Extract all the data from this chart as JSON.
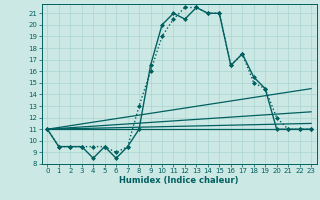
{
  "xlabel": "Humidex (Indice chaleur)",
  "bg_color": "#cce8e4",
  "line_color": "#006060",
  "grid_color": "#aad4d0",
  "xlim": [
    -0.5,
    23.5
  ],
  "ylim": [
    8,
    21.8
  ],
  "yticks": [
    8,
    9,
    10,
    11,
    12,
    13,
    14,
    15,
    16,
    17,
    18,
    19,
    20,
    21
  ],
  "xticks": [
    0,
    1,
    2,
    3,
    4,
    5,
    6,
    7,
    8,
    9,
    10,
    11,
    12,
    13,
    14,
    15,
    16,
    17,
    18,
    19,
    20,
    21,
    22,
    23
  ],
  "series": [
    {
      "x": [
        0,
        1,
        2,
        3,
        4,
        5,
        6,
        7,
        8,
        9,
        10,
        11,
        12,
        13,
        14,
        15,
        16,
        17,
        18,
        19,
        20,
        21,
        22,
        23
      ],
      "y": [
        11,
        9.5,
        9.5,
        9.5,
        8.5,
        9.5,
        8.5,
        9.5,
        11,
        16.5,
        20,
        21,
        20.5,
        21.5,
        21,
        21,
        16.5,
        17.5,
        15.5,
        14.5,
        11,
        11,
        11,
        11
      ],
      "marker": "D",
      "markersize": 2,
      "linewidth": 1.0,
      "linestyle": "-"
    },
    {
      "x": [
        0,
        1,
        2,
        3,
        4,
        5,
        6,
        7,
        8,
        9,
        10,
        11,
        12,
        13,
        14,
        15,
        16,
        17,
        18,
        19,
        20,
        21,
        22,
        23
      ],
      "y": [
        11,
        9.5,
        9.5,
        9.5,
        9.5,
        9.5,
        9.0,
        9.5,
        13,
        16,
        19,
        20.5,
        21.5,
        21.5,
        21,
        21,
        16.5,
        17.5,
        15,
        14.5,
        12,
        11,
        11,
        11
      ],
      "marker": "D",
      "markersize": 2,
      "linewidth": 1.0,
      "linestyle": ":"
    },
    {
      "x": [
        0,
        23
      ],
      "y": [
        11,
        14.5
      ],
      "marker": null,
      "markersize": 0,
      "linewidth": 0.9,
      "linestyle": "-"
    },
    {
      "x": [
        0,
        23
      ],
      "y": [
        11,
        12.5
      ],
      "marker": null,
      "markersize": 0,
      "linewidth": 0.9,
      "linestyle": "-"
    },
    {
      "x": [
        0,
        23
      ],
      "y": [
        11,
        11.5
      ],
      "marker": null,
      "markersize": 0,
      "linewidth": 0.9,
      "linestyle": "-"
    },
    {
      "x": [
        0,
        23
      ],
      "y": [
        11,
        11
      ],
      "marker": null,
      "markersize": 0,
      "linewidth": 0.9,
      "linestyle": "-"
    }
  ]
}
